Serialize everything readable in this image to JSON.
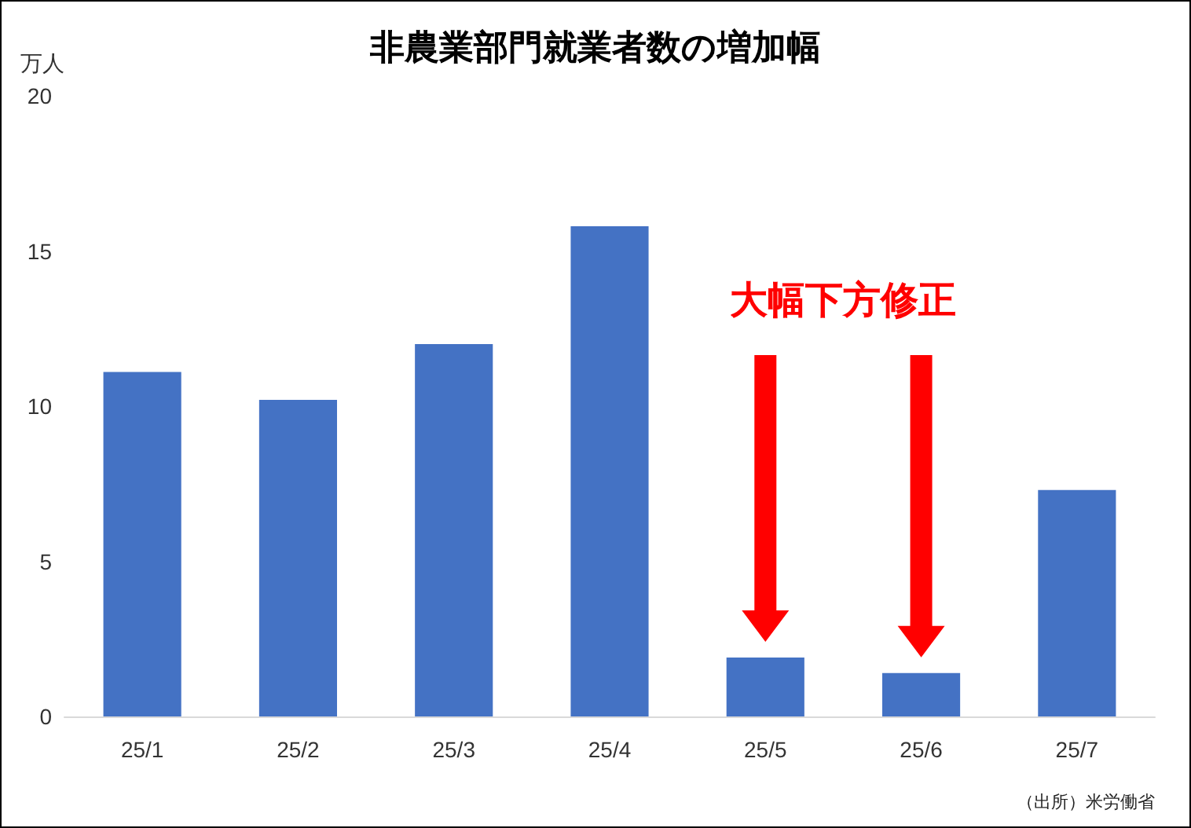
{
  "chart_data": {
    "type": "bar",
    "title": "非農業部門就業者数の増加幅",
    "ylabel": "万人",
    "categories": [
      "25/1",
      "25/2",
      "25/3",
      "25/4",
      "25/5",
      "25/6",
      "25/7"
    ],
    "values": [
      11.1,
      10.2,
      12.0,
      15.8,
      1.9,
      1.4,
      7.3
    ],
    "color": "#4472c4",
    "ylim": [
      0,
      20
    ],
    "yticks": [
      0,
      5,
      10,
      15,
      20
    ],
    "grid": false,
    "annotations": [
      "大幅下方修正",
      "（出所）米労働省"
    ]
  }
}
